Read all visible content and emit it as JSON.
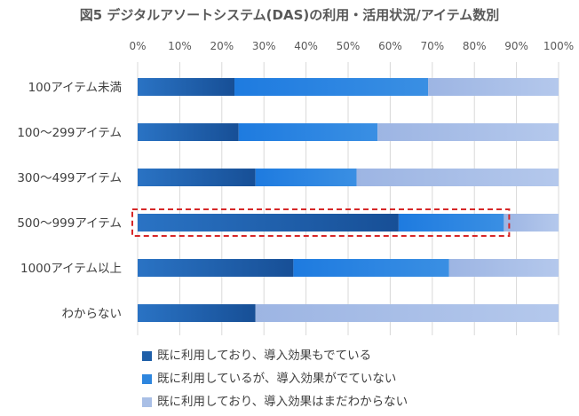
{
  "chart_data": {
    "type": "bar",
    "orientation": "horizontal",
    "stacked": true,
    "title": "図5 デジタルアソートシステム(DAS)の利用・活用状況/アイテム数別",
    "xlim": [
      0,
      100
    ],
    "x_tick_labels": [
      "0%",
      "10%",
      "20%",
      "30%",
      "40%",
      "50%",
      "60%",
      "70%",
      "80%",
      "90%",
      "100%"
    ],
    "grid": true,
    "legend_position": "bottom",
    "categories": [
      "100アイテム未満",
      "100～299アイテム",
      "300～499アイテム",
      "500～999アイテム",
      "1000アイテム以上",
      "わからない"
    ],
    "series": [
      {
        "name": "既に利用しており、導入効果もでている",
        "color": "#1f5fa8",
        "values": [
          23,
          24,
          28,
          62,
          37,
          28
        ]
      },
      {
        "name": "既に利用しているが、導入効果がでていない",
        "color": "#2e86de",
        "values": [
          46,
          33,
          24,
          25,
          37,
          0
        ]
      },
      {
        "name": "既に利用しており、導入効果はまだわからない",
        "color": "#a9bfe6",
        "values": [
          31,
          43,
          48,
          13,
          26,
          72
        ]
      }
    ],
    "highlighted_category": "500～999アイテム",
    "highlight_color": "#d62728"
  }
}
